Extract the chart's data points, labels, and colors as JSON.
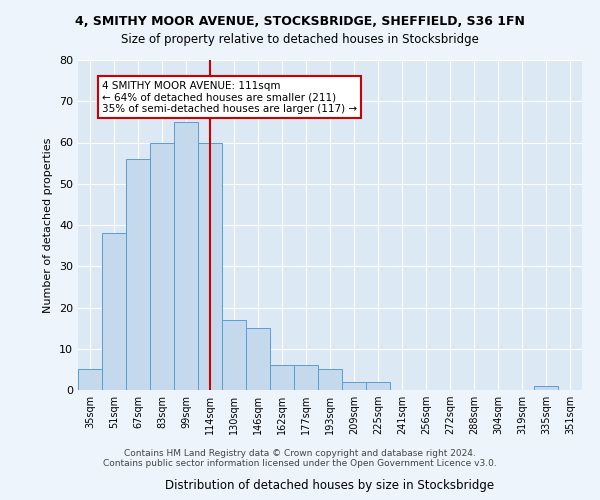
{
  "title1": "4, SMITHY MOOR AVENUE, STOCKSBRIDGE, SHEFFIELD, S36 1FN",
  "title2": "Size of property relative to detached houses in Stocksbridge",
  "xlabel": "Distribution of detached houses by size in Stocksbridge",
  "ylabel": "Number of detached properties",
  "categories": [
    "35sqm",
    "51sqm",
    "67sqm",
    "83sqm",
    "99sqm",
    "114sqm",
    "130sqm",
    "146sqm",
    "162sqm",
    "177sqm",
    "193sqm",
    "209sqm",
    "225sqm",
    "241sqm",
    "256sqm",
    "272sqm",
    "288sqm",
    "304sqm",
    "319sqm",
    "335sqm",
    "351sqm"
  ],
  "values": [
    5,
    38,
    56,
    60,
    65,
    60,
    17,
    15,
    6,
    6,
    5,
    2,
    2,
    0,
    0,
    0,
    0,
    0,
    0,
    1,
    0
  ],
  "bar_color": "#c5d9ed",
  "bar_edge_color": "#5b9bd5",
  "vline_x": 5,
  "vline_color": "#cc0000",
  "annotation_text": "4 SMITHY MOOR AVENUE: 111sqm\n← 64% of detached houses are smaller (211)\n35% of semi-detached houses are larger (117) →",
  "annotation_box_color": "#ffffff",
  "annotation_box_edge": "#cc0000",
  "ylim": [
    0,
    80
  ],
  "yticks": [
    0,
    10,
    20,
    30,
    40,
    50,
    60,
    70,
    80
  ],
  "footer1": "Contains HM Land Registry data © Crown copyright and database right 2024.",
  "footer2": "Contains public sector information licensed under the Open Government Licence v3.0.",
  "fig_bg": "#edf4fb",
  "plot_bg": "#dce9f5"
}
